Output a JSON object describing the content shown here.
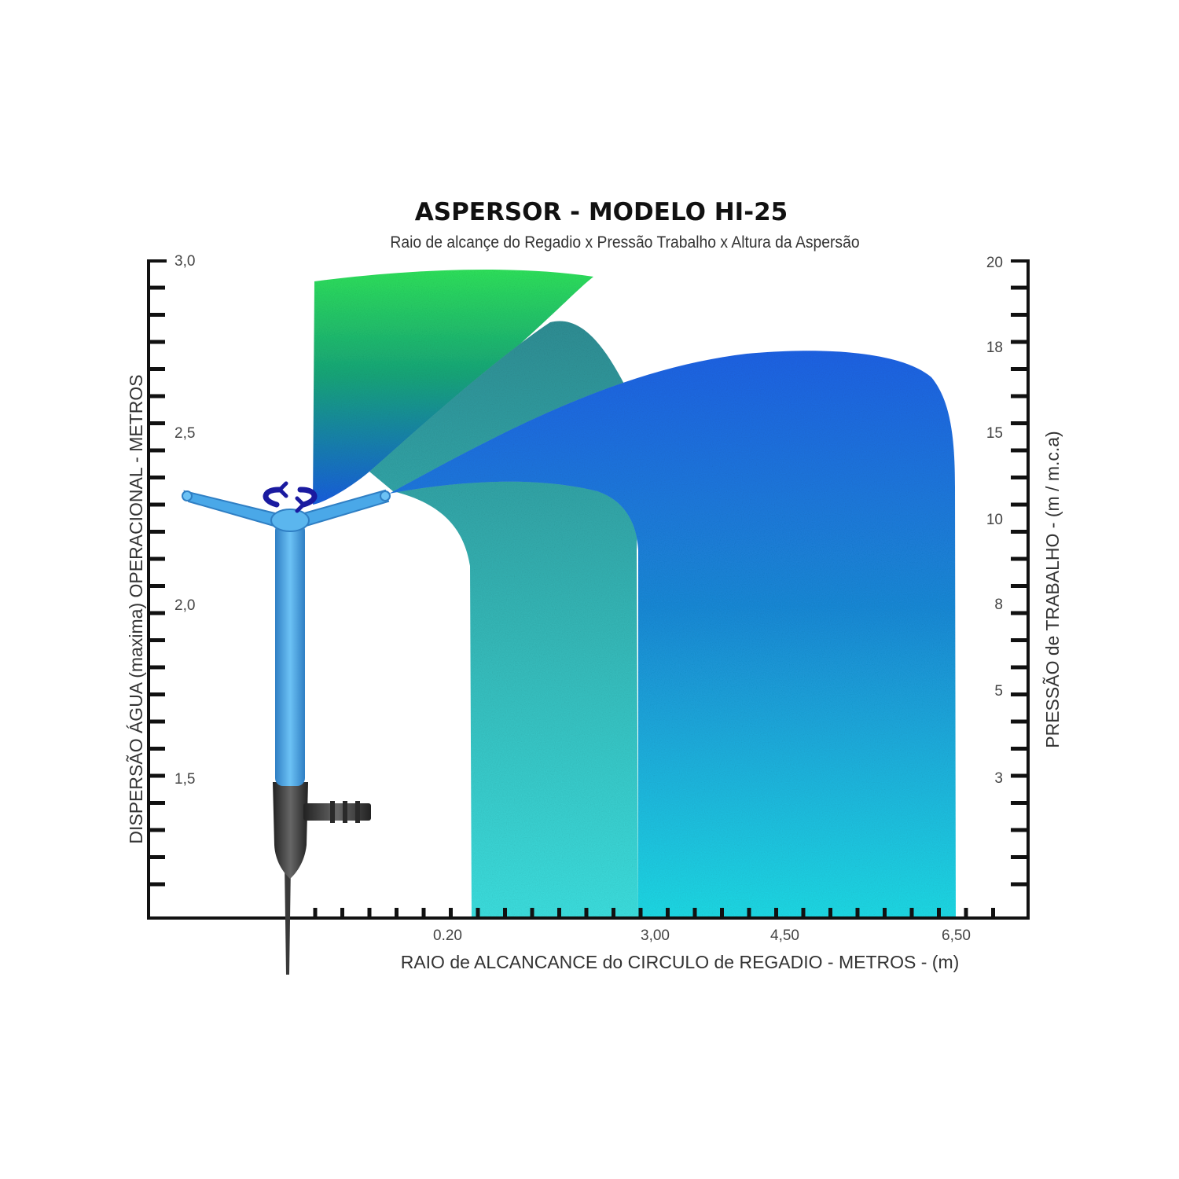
{
  "title": "ASPERSOR - MODELO HI-25",
  "subtitle": "Raio de alcançe do Regadio x Pressão Trabalho x Altura da Aspersão",
  "axes": {
    "x_label": "RAIO de ALCANCANCE do CIRCULO de REGADIO - METROS - (m)",
    "y_left_label": "DISPERSÃO ÁGUA (maxima) OPERACIONAL - METROS",
    "y_right_label": "PRESSÃO de TRABALHO - (m / m.c.a)",
    "x_ticks": [
      "0.20",
      "3,00",
      "4,50",
      "6,50"
    ],
    "y_left_ticks": [
      "3,0",
      "2,5",
      "2,0",
      "1,5"
    ],
    "y_right_ticks": [
      "20",
      "18",
      "15",
      "10",
      "8",
      "5",
      "3"
    ]
  },
  "colors": {
    "spray_green": "#2ee05a",
    "spray_blue": "#1e6ee6",
    "spray_teal": "#38c9c9",
    "spray_cyan": "#1fd4e0",
    "sprinkler_body": "#4aa8e8",
    "sprinkler_base": "#3a3a3a",
    "rotation_arrow": "#1a1aa0"
  },
  "icons": {
    "sprinkler": "sprinkler-icon",
    "rotation": "rotation-arrows-icon"
  }
}
